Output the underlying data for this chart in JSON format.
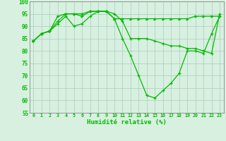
{
  "xlabel": "Humidité relative (%)",
  "xlim": [
    -0.5,
    23.5
  ],
  "ylim": [
    55,
    100
  ],
  "yticks": [
    55,
    60,
    65,
    70,
    75,
    80,
    85,
    90,
    95,
    100
  ],
  "xticks": [
    0,
    1,
    2,
    3,
    4,
    5,
    6,
    7,
    8,
    9,
    10,
    11,
    12,
    13,
    14,
    15,
    16,
    17,
    18,
    19,
    20,
    21,
    22,
    23
  ],
  "bg_color": "#d8f0e0",
  "grid_color": "#a8ccc0",
  "line_color": "#00bb00",
  "series1_x": [
    0,
    1,
    2,
    3,
    4,
    5,
    6,
    7,
    8,
    9,
    10,
    11,
    12,
    13,
    14,
    15,
    16,
    17,
    18,
    19,
    20,
    21,
    22,
    23
  ],
  "series1_y": [
    84,
    87,
    88,
    91,
    94,
    90,
    91,
    94,
    96,
    96,
    95,
    92,
    85,
    85,
    85,
    84,
    83,
    82,
    82,
    81,
    81,
    80,
    79,
    95
  ],
  "series2_x": [
    0,
    1,
    2,
    3,
    4,
    5,
    6,
    7,
    8,
    9,
    10,
    11,
    12,
    13,
    14,
    15,
    16,
    17,
    18,
    19,
    20,
    21,
    22,
    23
  ],
  "series2_y": [
    84,
    87,
    88,
    92,
    95,
    95,
    95,
    96,
    96,
    96,
    93,
    85,
    78,
    70,
    62,
    61,
    64,
    67,
    71,
    80,
    80,
    79,
    87,
    94
  ],
  "series3_x": [
    0,
    1,
    2,
    3,
    4,
    5,
    6,
    7,
    8,
    9,
    10,
    11,
    12,
    13,
    14,
    15,
    16,
    17,
    18,
    19,
    20,
    21,
    22,
    23
  ],
  "series3_y": [
    84,
    87,
    88,
    94,
    95,
    95,
    94,
    96,
    96,
    96,
    93,
    93,
    93,
    93,
    93,
    93,
    93,
    93,
    93,
    93,
    94,
    94,
    94,
    94
  ]
}
